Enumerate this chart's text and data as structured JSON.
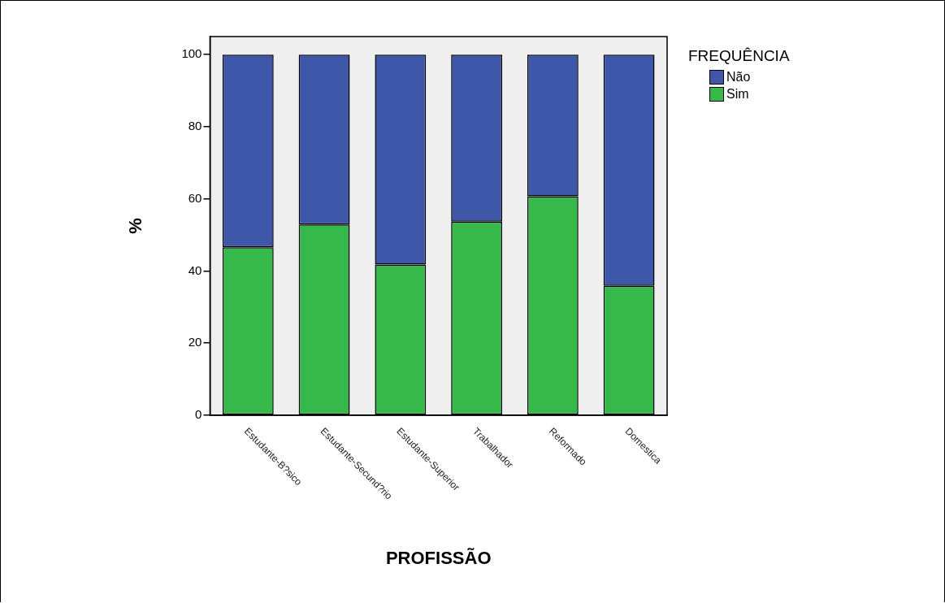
{
  "chart_data": {
    "type": "bar",
    "stacked": true,
    "xlabel": "PROFISSÃO",
    "ylabel": "%",
    "legend_title": "FREQUÊNCIA",
    "legend": "top right",
    "categories": [
      "Estudante-B?sico",
      "Estudante-Secund?rio",
      "Estudante-Superior",
      "Trabalhador",
      "Reformado",
      "Domestica"
    ],
    "series": [
      {
        "name": "Sim",
        "color": "#36b84a",
        "values": [
          46.6,
          52.9,
          41.8,
          53.7,
          60.7,
          35.9
        ]
      },
      {
        "name": "Não",
        "color": "#3e57a9",
        "values": [
          53.4,
          47.1,
          58.2,
          46.3,
          39.3,
          64.1
        ]
      }
    ],
    "ylim": [
      0,
      105
    ],
    "yticks": [
      0,
      20,
      40,
      60,
      80,
      100
    ],
    "grid": false
  }
}
